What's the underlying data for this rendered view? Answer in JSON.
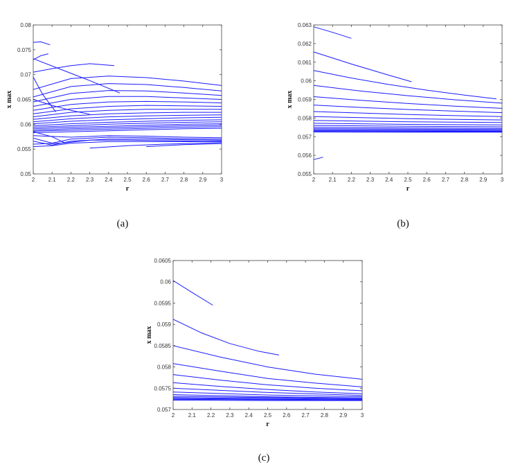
{
  "chart_data": [
    {
      "panel": "(a)",
      "type": "line",
      "xlabel": "r",
      "ylabel": "x max",
      "xlim": [
        2,
        3
      ],
      "ylim": [
        0.05,
        0.08
      ],
      "xticks": [
        "2",
        "2.1",
        "2.2",
        "2.3",
        "2.4",
        "2.5",
        "2.6",
        "2.7",
        "2.8",
        "2.9",
        "3"
      ],
      "yticks": [
        "0.05",
        "0.055",
        "0.06",
        "0.065",
        "0.07",
        "0.075",
        "0.08"
      ],
      "grid": false,
      "color": "#1a1aff",
      "series": [
        {
          "x": [
            2.0,
            2.04,
            2.09
          ],
          "y": [
            0.0765,
            0.0766,
            0.076
          ]
        },
        {
          "x": [
            2.0,
            2.04,
            2.08
          ],
          "y": [
            0.073,
            0.0738,
            0.0742
          ]
        },
        {
          "x": [
            2.0,
            2.1,
            2.2,
            2.3,
            2.43
          ],
          "y": [
            0.0705,
            0.0712,
            0.0718,
            0.0722,
            0.0718
          ]
        },
        {
          "x": [
            2.0,
            2.15,
            2.3,
            2.46
          ],
          "y": [
            0.0732,
            0.071,
            0.0688,
            0.0663
          ]
        },
        {
          "x": [
            2.0,
            2.2,
            2.4,
            2.6,
            2.8,
            3.0
          ],
          "y": [
            0.067,
            0.0692,
            0.0697,
            0.0694,
            0.0687,
            0.0678
          ]
        },
        {
          "x": [
            2.0,
            2.2,
            2.4,
            2.6,
            2.8,
            3.0
          ],
          "y": [
            0.0655,
            0.0676,
            0.0682,
            0.068,
            0.0674,
            0.0667
          ]
        },
        {
          "x": [
            2.0,
            2.2,
            2.4,
            2.6,
            2.8,
            3.0
          ],
          "y": [
            0.0645,
            0.0662,
            0.0668,
            0.0667,
            0.0663,
            0.0658
          ]
        },
        {
          "x": [
            2.0,
            2.2,
            2.4,
            2.6,
            2.8,
            3.0
          ],
          "y": [
            0.0636,
            0.065,
            0.0656,
            0.0656,
            0.0653,
            0.065
          ]
        },
        {
          "x": [
            2.0,
            2.2,
            2.4,
            2.6,
            2.8,
            3.0
          ],
          "y": [
            0.0628,
            0.064,
            0.0645,
            0.0646,
            0.0645,
            0.0643
          ]
        },
        {
          "x": [
            2.0,
            2.2,
            2.4,
            2.6,
            2.8,
            3.0
          ],
          "y": [
            0.0621,
            0.0631,
            0.0636,
            0.0638,
            0.0637,
            0.0636
          ]
        },
        {
          "x": [
            2.0,
            2.2,
            2.4,
            2.6,
            2.8,
            3.0
          ],
          "y": [
            0.0615,
            0.0624,
            0.0628,
            0.063,
            0.063,
            0.063
          ]
        },
        {
          "x": [
            2.0,
            2.2,
            2.4,
            2.6,
            2.8,
            3.0
          ],
          "y": [
            0.061,
            0.0617,
            0.0621,
            0.0623,
            0.0624,
            0.0624
          ]
        },
        {
          "x": [
            2.0,
            2.2,
            2.4,
            2.6,
            2.8,
            3.0
          ],
          "y": [
            0.0605,
            0.0611,
            0.0615,
            0.0617,
            0.0618,
            0.0619
          ]
        },
        {
          "x": [
            2.0,
            2.2,
            2.4,
            2.6,
            2.8,
            3.0
          ],
          "y": [
            0.0601,
            0.0606,
            0.0609,
            0.0611,
            0.0613,
            0.0614
          ]
        },
        {
          "x": [
            2.0,
            2.2,
            2.4,
            2.6,
            2.8,
            3.0
          ],
          "y": [
            0.0597,
            0.0601,
            0.0604,
            0.0606,
            0.0608,
            0.0609
          ]
        },
        {
          "x": [
            2.0,
            2.2,
            2.4,
            2.6,
            2.8,
            3.0
          ],
          "y": [
            0.0594,
            0.0597,
            0.06,
            0.0602,
            0.0604,
            0.0605
          ]
        },
        {
          "x": [
            2.0,
            2.2,
            2.4,
            2.6,
            2.8,
            3.0
          ],
          "y": [
            0.0591,
            0.0594,
            0.0596,
            0.0598,
            0.06,
            0.0601
          ]
        },
        {
          "x": [
            2.0,
            2.2,
            2.4,
            2.6,
            2.8,
            3.0
          ],
          "y": [
            0.0588,
            0.0591,
            0.0593,
            0.0595,
            0.0597,
            0.0598
          ]
        },
        {
          "x": [
            2.0,
            2.2,
            2.4,
            2.6,
            2.8,
            3.0
          ],
          "y": [
            0.0586,
            0.0588,
            0.059,
            0.0592,
            0.0594,
            0.0595
          ]
        },
        {
          "x": [
            2.0,
            2.2,
            2.4,
            2.6,
            2.8,
            3.0
          ],
          "y": [
            0.0583,
            0.0585,
            0.0587,
            0.0589,
            0.0591,
            0.0592
          ]
        },
        {
          "x": [
            2.0,
            2.1,
            2.2,
            2.3
          ],
          "y": [
            0.065,
            0.0638,
            0.0628,
            0.062
          ]
        },
        {
          "x": [
            2.0,
            2.05,
            2.12
          ],
          "y": [
            0.0695,
            0.066,
            0.0625
          ]
        },
        {
          "x": [
            2.0,
            2.1,
            2.2,
            2.4,
            2.6,
            2.8,
            3.0
          ],
          "y": [
            0.0572,
            0.0562,
            0.057,
            0.0574,
            0.0573,
            0.0571,
            0.057
          ]
        },
        {
          "x": [
            2.0,
            2.1,
            2.2,
            2.4,
            2.6,
            2.8,
            3.0
          ],
          "y": [
            0.0566,
            0.0558,
            0.0566,
            0.057,
            0.057,
            0.0569,
            0.0568
          ]
        },
        {
          "x": [
            2.0,
            2.15,
            2.3,
            2.5,
            2.7,
            2.9,
            3.0
          ],
          "y": [
            0.056,
            0.0562,
            0.0568,
            0.0568,
            0.0567,
            0.0566,
            0.0566
          ]
        },
        {
          "x": [
            2.0,
            2.1,
            2.2,
            2.4,
            2.6,
            2.8,
            3.0
          ],
          "y": [
            0.0555,
            0.0557,
            0.0562,
            0.0565,
            0.0565,
            0.0565,
            0.0565
          ]
        },
        {
          "x": [
            2.0,
            2.2,
            2.4,
            2.6,
            2.8,
            3.0
          ],
          "y": [
            0.0577,
            0.0574,
            0.0577,
            0.0576,
            0.0574,
            0.0573
          ]
        },
        {
          "x": [
            2.3,
            2.5,
            2.7,
            2.9,
            3.0
          ],
          "y": [
            0.0552,
            0.0557,
            0.056,
            0.0562,
            0.0563
          ]
        },
        {
          "x": [
            2.6,
            2.8,
            3.0
          ],
          "y": [
            0.0555,
            0.0559,
            0.0561
          ]
        },
        {
          "x": [
            2.0,
            2.1,
            2.17
          ],
          "y": [
            0.0585,
            0.0575,
            0.0562
          ]
        }
      ]
    },
    {
      "panel": "(b)",
      "type": "line",
      "xlabel": "r",
      "ylabel": "x max",
      "xlim": [
        2,
        3
      ],
      "ylim": [
        0.055,
        0.063
      ],
      "xticks": [
        "2",
        "2.1",
        "2.2",
        "2.3",
        "2.4",
        "2.5",
        "2.6",
        "2.7",
        "2.8",
        "2.9",
        "3"
      ],
      "yticks": [
        "0.055",
        "0.056",
        "0.057",
        "0.058",
        "0.059",
        "0.06",
        "0.061",
        "0.062",
        "0.063"
      ],
      "grid": false,
      "color": "#1a1aff",
      "series": [
        {
          "x": [
            2.0,
            2.1,
            2.2
          ],
          "y": [
            0.0629,
            0.0626,
            0.06228
          ]
        },
        {
          "x": [
            2.0,
            2.2,
            2.4,
            2.52
          ],
          "y": [
            0.06155,
            0.0609,
            0.0603,
            0.05995
          ]
        },
        {
          "x": [
            2.0,
            2.2,
            2.4,
            2.6,
            2.8,
            2.97
          ],
          "y": [
            0.06055,
            0.06015,
            0.0598,
            0.0595,
            0.05923,
            0.05903
          ]
        },
        {
          "x": [
            2.0,
            2.25,
            2.5,
            2.75,
            3.0
          ],
          "y": [
            0.05975,
            0.05945,
            0.0592,
            0.05898,
            0.0588
          ]
        },
        {
          "x": [
            2.0,
            2.25,
            2.5,
            2.75,
            3.0
          ],
          "y": [
            0.05915,
            0.05895,
            0.05878,
            0.05864,
            0.05852
          ]
        },
        {
          "x": [
            2.0,
            2.25,
            2.5,
            2.75,
            3.0
          ],
          "y": [
            0.0587,
            0.05857,
            0.05846,
            0.05837,
            0.05829
          ]
        },
        {
          "x": [
            2.0,
            2.25,
            2.5,
            2.75,
            3.0
          ],
          "y": [
            0.05835,
            0.05827,
            0.05819,
            0.05813,
            0.05808
          ]
        },
        {
          "x": [
            2.0,
            2.25,
            2.5,
            2.75,
            3.0
          ],
          "y": [
            0.05808,
            0.05802,
            0.05797,
            0.05793,
            0.0579
          ]
        },
        {
          "x": [
            2.0,
            2.5,
            3.0
          ],
          "y": [
            0.05787,
            0.0578,
            0.05776
          ]
        },
        {
          "x": [
            2.0,
            2.5,
            3.0
          ],
          "y": [
            0.05772,
            0.05766,
            0.05763
          ]
        },
        {
          "x": [
            2.0,
            2.5,
            3.0
          ],
          "y": [
            0.0576,
            0.05756,
            0.05753
          ]
        },
        {
          "x": [
            2.0,
            2.5,
            3.0
          ],
          "y": [
            0.0575,
            0.05747,
            0.05745
          ]
        },
        {
          "x": [
            2.0,
            2.5,
            3.0
          ],
          "y": [
            0.05743,
            0.05741,
            0.05739
          ]
        },
        {
          "x": [
            2.0,
            2.5,
            3.0
          ],
          "y": [
            0.05737,
            0.05735,
            0.05734
          ]
        },
        {
          "x": [
            2.0,
            2.5,
            3.0
          ],
          "y": [
            0.05732,
            0.05731,
            0.0573
          ]
        },
        {
          "x": [
            2.0,
            2.5,
            3.0
          ],
          "y": [
            0.05728,
            0.05727,
            0.05727
          ]
        },
        {
          "x": [
            2.0,
            2.5,
            3.0
          ],
          "y": [
            0.05725,
            0.05724,
            0.05724
          ]
        },
        {
          "x": [
            2.0,
            2.05
          ],
          "y": [
            0.05577,
            0.0559
          ]
        }
      ]
    },
    {
      "panel": "(c)",
      "type": "line",
      "xlabel": "r",
      "ylabel": "x max",
      "xlim": [
        2,
        3
      ],
      "ylim": [
        0.057,
        0.0605
      ],
      "xticks": [
        "2",
        "2.1",
        "2.2",
        "2.3",
        "2.4",
        "2.5",
        "2.6",
        "2.7",
        "2.8",
        "2.9",
        "3"
      ],
      "yticks": [
        "0.057",
        "0.0575",
        "0.058",
        "0.0585",
        "0.059",
        "0.0595",
        "0.06",
        "0.0605"
      ],
      "grid": false,
      "color": "#1a1aff",
      "series": [
        {
          "x": [
            2.0,
            2.1,
            2.21
          ],
          "y": [
            0.06003,
            0.05975,
            0.05945
          ]
        },
        {
          "x": [
            2.0,
            2.15,
            2.3,
            2.45,
            2.56
          ],
          "y": [
            0.05912,
            0.0588,
            0.05855,
            0.05837,
            0.05828
          ]
        },
        {
          "x": [
            2.0,
            2.25,
            2.5,
            2.75,
            3.0
          ],
          "y": [
            0.0585,
            0.05823,
            0.058,
            0.05783,
            0.05771
          ]
        },
        {
          "x": [
            2.0,
            2.25,
            2.5,
            2.75,
            3.0
          ],
          "y": [
            0.05808,
            0.0579,
            0.05773,
            0.05762,
            0.05753
          ]
        },
        {
          "x": [
            2.0,
            2.25,
            2.5,
            2.75,
            3.0
          ],
          "y": [
            0.05782,
            0.05769,
            0.05758,
            0.0575,
            0.05744
          ]
        },
        {
          "x": [
            2.0,
            2.25,
            2.5,
            2.75,
            3.0
          ],
          "y": [
            0.05763,
            0.05754,
            0.05747,
            0.05741,
            0.05737
          ]
        },
        {
          "x": [
            2.0,
            2.5,
            3.0
          ],
          "y": [
            0.0575,
            0.0574,
            0.05733
          ]
        },
        {
          "x": [
            2.0,
            2.5,
            3.0
          ],
          "y": [
            0.05741,
            0.05734,
            0.0573
          ]
        },
        {
          "x": [
            2.0,
            2.5,
            3.0
          ],
          "y": [
            0.05735,
            0.0573,
            0.05727
          ]
        },
        {
          "x": [
            2.0,
            2.5,
            3.0
          ],
          "y": [
            0.05731,
            0.05728,
            0.05726
          ]
        },
        {
          "x": [
            2.0,
            2.5,
            3.0
          ],
          "y": [
            0.05728,
            0.05726,
            0.05724
          ]
        },
        {
          "x": [
            2.0,
            2.5,
            3.0
          ],
          "y": [
            0.05726,
            0.05724,
            0.05723
          ]
        },
        {
          "x": [
            2.0,
            2.5,
            3.0
          ],
          "y": [
            0.05724,
            0.05723,
            0.05722
          ]
        },
        {
          "x": [
            2.0,
            2.5,
            3.0
          ],
          "y": [
            0.05722,
            0.05721,
            0.05721
          ]
        }
      ]
    }
  ]
}
